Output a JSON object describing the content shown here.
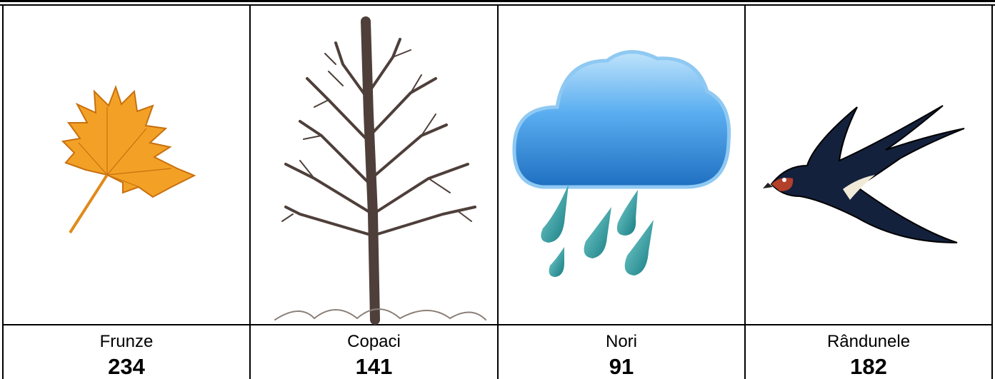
{
  "table": {
    "rows": [
      {
        "label": "Frunze",
        "count": 234
      },
      {
        "label": "Copaci",
        "count": 141
      },
      {
        "label": "Nori",
        "count": 91
      },
      {
        "label": "Rândunele",
        "count": 182
      }
    ]
  }
}
